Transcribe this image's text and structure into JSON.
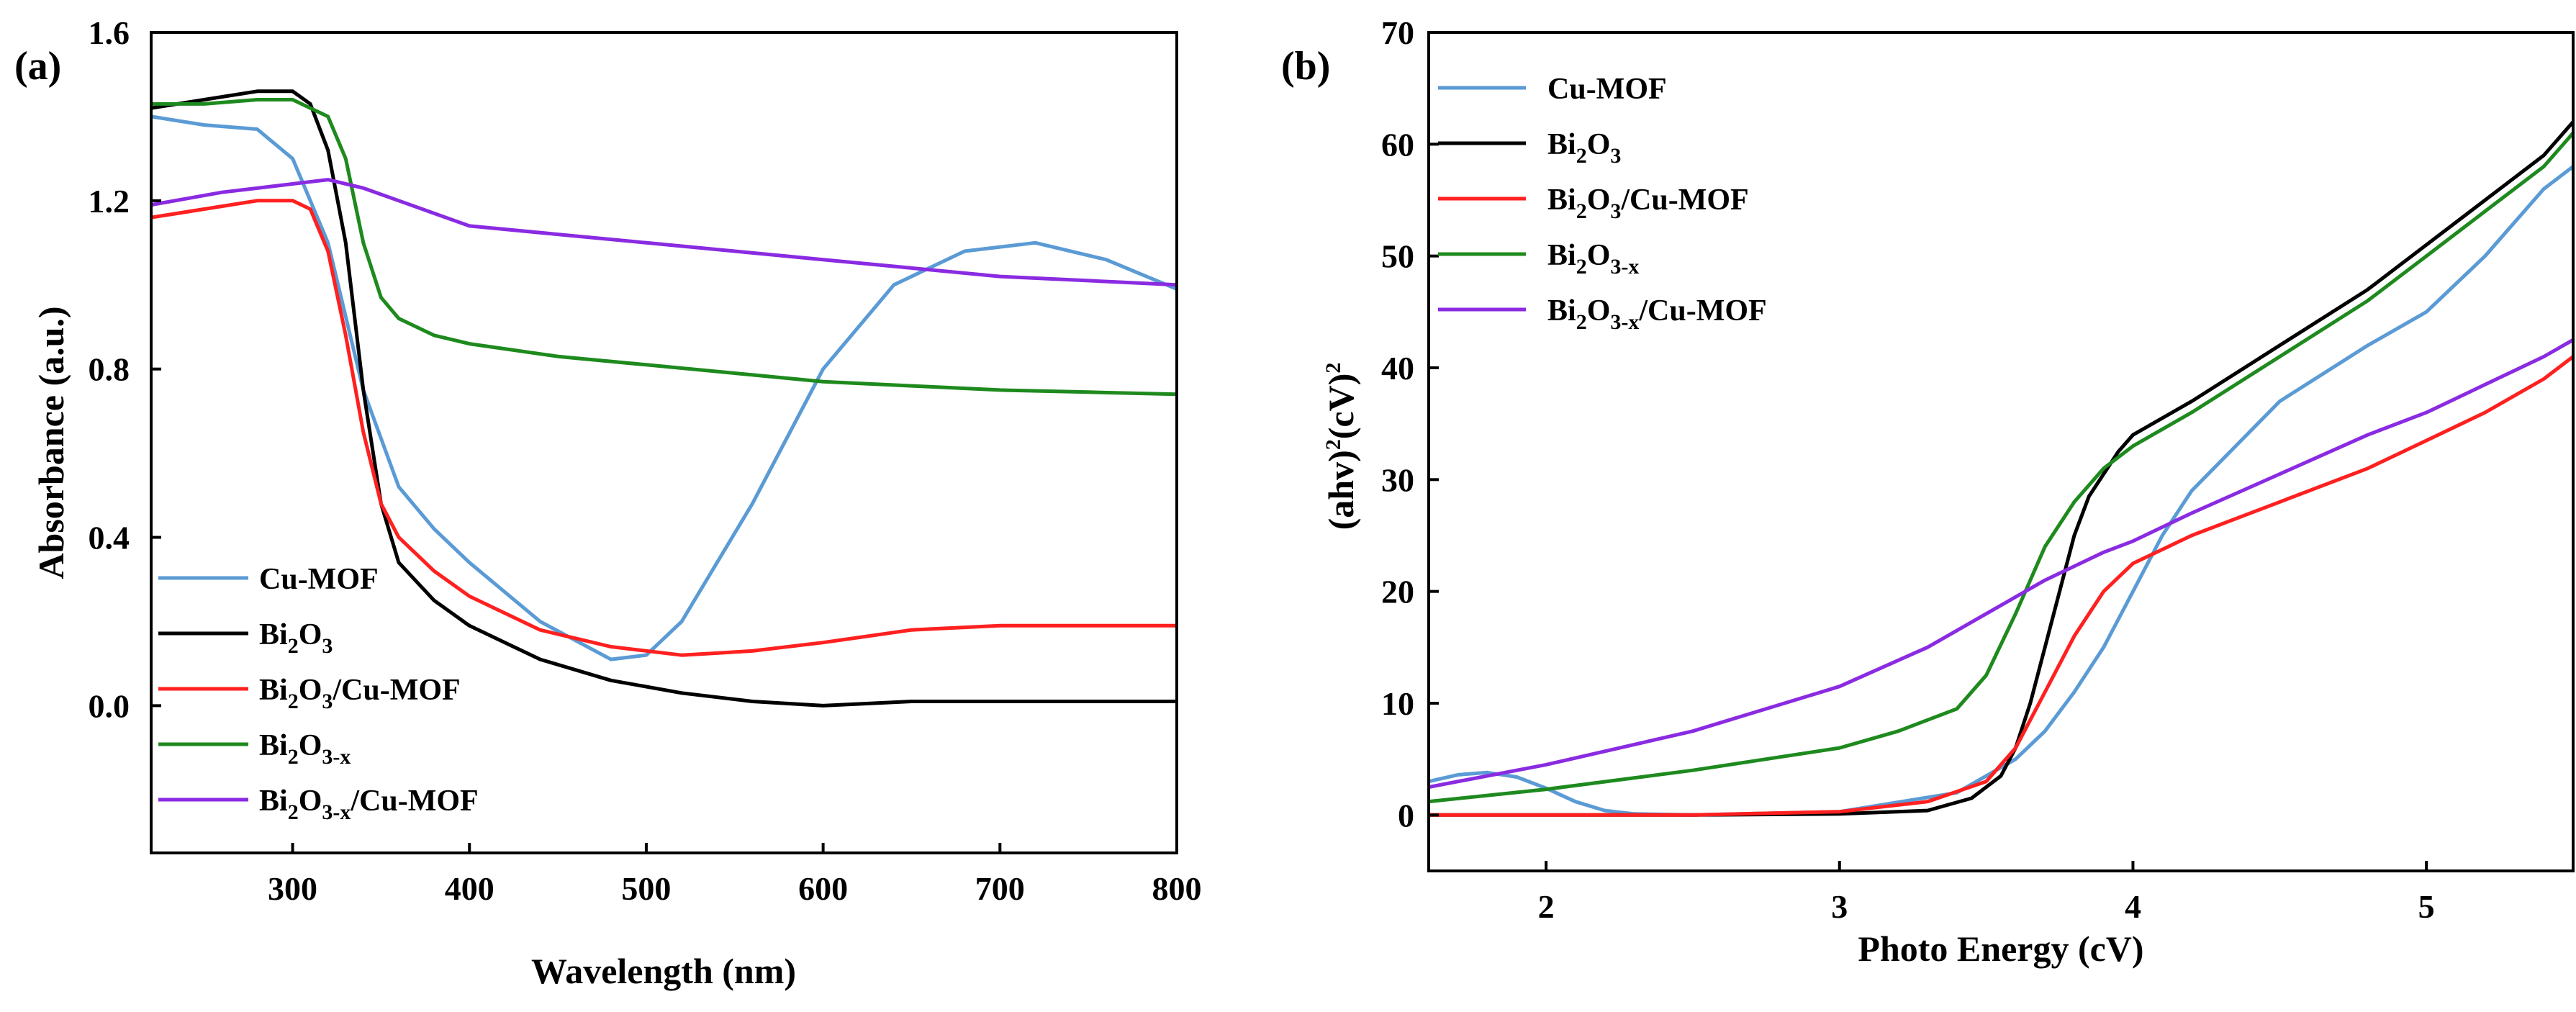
{
  "chart_data": [
    {
      "panel": "(a)",
      "type": "line",
      "xlabel": "Wavelength (nm)",
      "ylabel": "Absorbance (a.u.)",
      "xlim": [
        220,
        800
      ],
      "ylim": [
        -0.35,
        1.6
      ],
      "xticks": [
        300,
        400,
        500,
        600,
        700,
        800
      ],
      "yticks": [
        0.0,
        0.4,
        0.8,
        1.2,
        1.6
      ],
      "xtick_labels": [
        "300",
        "400",
        "500",
        "600",
        "700",
        "800"
      ],
      "ytick_labels": [
        "0.0",
        "0.4",
        "0.8",
        "1.2",
        "1.6"
      ],
      "legend_position": "bottom-left",
      "series": [
        {
          "name": "Cu-MOF",
          "label_main": "Cu-MOF",
          "color": "#5b9bd5",
          "x": [
            220,
            250,
            280,
            300,
            320,
            340,
            360,
            380,
            400,
            440,
            480,
            500,
            520,
            560,
            600,
            640,
            680,
            720,
            760,
            800
          ],
          "y": [
            1.4,
            1.38,
            1.37,
            1.3,
            1.1,
            0.75,
            0.52,
            0.42,
            0.34,
            0.2,
            0.11,
            0.12,
            0.2,
            0.48,
            0.8,
            1.0,
            1.08,
            1.1,
            1.06,
            0.99
          ]
        },
        {
          "name": "Bi2O3",
          "label_main": "Bi",
          "label_sub1": "2",
          "label_mid": "O",
          "label_sub2": "3",
          "label_end": "",
          "color": "#000000",
          "x": [
            220,
            250,
            280,
            300,
            310,
            320,
            330,
            340,
            350,
            360,
            380,
            400,
            440,
            480,
            520,
            560,
            600,
            650,
            700,
            800
          ],
          "y": [
            1.42,
            1.44,
            1.46,
            1.46,
            1.43,
            1.32,
            1.1,
            0.75,
            0.48,
            0.34,
            0.25,
            0.19,
            0.11,
            0.06,
            0.03,
            0.01,
            0.0,
            0.01,
            0.01,
            0.01
          ]
        },
        {
          "name": "Bi2O3/Cu-MOF",
          "label_main": "Bi",
          "label_sub1": "2",
          "label_mid": "O",
          "label_sub2": "3",
          "label_end": "/Cu-MOF",
          "color": "#ff2020",
          "x": [
            220,
            250,
            280,
            300,
            310,
            320,
            330,
            340,
            350,
            360,
            380,
            400,
            440,
            480,
            520,
            560,
            600,
            650,
            700,
            750,
            800
          ],
          "y": [
            1.16,
            1.18,
            1.2,
            1.2,
            1.18,
            1.08,
            0.88,
            0.65,
            0.48,
            0.4,
            0.32,
            0.26,
            0.18,
            0.14,
            0.12,
            0.13,
            0.15,
            0.18,
            0.19,
            0.19,
            0.19
          ]
        },
        {
          "name": "Bi2O3-x",
          "label_main": "Bi",
          "label_sub1": "2",
          "label_mid": "O",
          "label_sub2": "3-x",
          "label_end": "",
          "color": "#1e8a1e",
          "x": [
            220,
            250,
            280,
            300,
            320,
            330,
            340,
            350,
            360,
            380,
            400,
            450,
            500,
            550,
            600,
            650,
            700,
            750,
            800
          ],
          "y": [
            1.43,
            1.43,
            1.44,
            1.44,
            1.4,
            1.3,
            1.1,
            0.97,
            0.92,
            0.88,
            0.86,
            0.83,
            0.81,
            0.79,
            0.77,
            0.76,
            0.75,
            0.745,
            0.74
          ]
        },
        {
          "name": "Bi2O3-x/Cu-MOF",
          "label_main": "Bi",
          "label_sub1": "2",
          "label_mid": "O",
          "label_sub2": "3-x",
          "label_end": "/Cu-MOF",
          "color": "#8a2be2",
          "x": [
            220,
            260,
            300,
            320,
            340,
            360,
            380,
            400,
            450,
            500,
            550,
            600,
            650,
            700,
            750,
            800
          ],
          "y": [
            1.19,
            1.22,
            1.24,
            1.25,
            1.23,
            1.2,
            1.17,
            1.14,
            1.12,
            1.1,
            1.08,
            1.06,
            1.04,
            1.02,
            1.01,
            1.0
          ]
        }
      ]
    },
    {
      "panel": "(b)",
      "type": "line",
      "xlabel": "Photo Energy (cV)",
      "ylabel_main": "(ahv)",
      "ylabel_sup1": "2",
      "ylabel_mid": "(cV)",
      "ylabel_sup2": "2",
      "xlim": [
        1.6,
        5.5
      ],
      "ylim": [
        -5,
        70
      ],
      "xticks": [
        2,
        3,
        4,
        5
      ],
      "yticks": [
        0,
        10,
        20,
        30,
        40,
        50,
        60,
        70
      ],
      "xtick_labels": [
        "2",
        "3",
        "4",
        "5"
      ],
      "ytick_labels": [
        "0",
        "10",
        "20",
        "30",
        "40",
        "50",
        "60",
        "70"
      ],
      "legend_position": "top-left",
      "series": [
        {
          "name": "Cu-MOF",
          "label_main": "Cu-MOF",
          "color": "#5b9bd5",
          "x": [
            1.6,
            1.7,
            1.8,
            1.9,
            2.0,
            2.1,
            2.2,
            2.3,
            2.5,
            3.0,
            3.4,
            3.6,
            3.7,
            3.8,
            3.9,
            4.0,
            4.1,
            4.2,
            4.5,
            4.8,
            5.0,
            5.2,
            5.4,
            5.5
          ],
          "y": [
            3.0,
            3.6,
            3.8,
            3.4,
            2.4,
            1.2,
            0.4,
            0.1,
            0.0,
            0.3,
            2.0,
            5.0,
            7.5,
            11.0,
            15.0,
            20.0,
            25.0,
            29.0,
            37.0,
            42.0,
            45.0,
            50.0,
            56.0,
            58.0
          ]
        },
        {
          "name": "Bi2O3",
          "label_main": "Bi",
          "label_sub1": "2",
          "label_mid": "O",
          "label_sub2": "3",
          "label_end": "",
          "color": "#000000",
          "x": [
            1.6,
            2.0,
            2.5,
            3.0,
            3.3,
            3.45,
            3.55,
            3.6,
            3.65,
            3.7,
            3.75,
            3.8,
            3.85,
            3.9,
            3.95,
            4.0,
            4.2,
            4.5,
            4.8,
            5.0,
            5.2,
            5.4,
            5.5
          ],
          "y": [
            0.0,
            0.0,
            0.0,
            0.1,
            0.4,
            1.5,
            3.5,
            6.0,
            10.0,
            15.0,
            20.0,
            25.0,
            28.5,
            30.5,
            32.5,
            34.0,
            37.0,
            42.0,
            47.0,
            51.0,
            55.0,
            59.0,
            62.0
          ]
        },
        {
          "name": "Bi2O3/Cu-MOF",
          "label_main": "Bi",
          "label_sub1": "2",
          "label_mid": "O",
          "label_sub2": "3",
          "label_end": "/Cu-MOF",
          "color": "#ff2020",
          "x": [
            1.6,
            2.0,
            2.5,
            3.0,
            3.3,
            3.5,
            3.6,
            3.7,
            3.8,
            3.9,
            4.0,
            4.2,
            4.5,
            4.8,
            5.0,
            5.2,
            5.4,
            5.5
          ],
          "y": [
            0.0,
            0.0,
            0.0,
            0.3,
            1.2,
            3.0,
            6.0,
            11.0,
            16.0,
            20.0,
            22.5,
            25.0,
            28.0,
            31.0,
            33.5,
            36.0,
            39.0,
            41.0
          ]
        },
        {
          "name": "Bi2O3-x",
          "label_main": "Bi",
          "label_sub1": "2",
          "label_mid": "O",
          "label_sub2": "3-x",
          "label_end": "",
          "color": "#1e8a1e",
          "x": [
            1.6,
            2.0,
            2.5,
            3.0,
            3.2,
            3.4,
            3.5,
            3.6,
            3.7,
            3.8,
            3.9,
            4.0,
            4.2,
            4.5,
            4.8,
            5.0,
            5.2,
            5.4,
            5.5
          ],
          "y": [
            1.2,
            2.3,
            4.0,
            6.0,
            7.5,
            9.5,
            12.5,
            18.0,
            24.0,
            28.0,
            31.0,
            33.0,
            36.0,
            41.0,
            46.0,
            50.0,
            54.0,
            58.0,
            61.0
          ]
        },
        {
          "name": "Bi2O3-x/Cu-MOF",
          "label_main": "Bi",
          "label_sub1": "2",
          "label_mid": "O",
          "label_sub2": "3-x",
          "label_end": "/Cu-MOF",
          "color": "#8a2be2",
          "x": [
            1.6,
            2.0,
            2.5,
            3.0,
            3.3,
            3.5,
            3.7,
            3.9,
            4.0,
            4.2,
            4.5,
            4.8,
            5.0,
            5.2,
            5.4,
            5.5
          ],
          "y": [
            2.5,
            4.5,
            7.5,
            11.5,
            15.0,
            18.0,
            21.0,
            23.5,
            24.5,
            27.0,
            30.5,
            34.0,
            36.0,
            38.5,
            41.0,
            42.5
          ]
        }
      ]
    }
  ]
}
